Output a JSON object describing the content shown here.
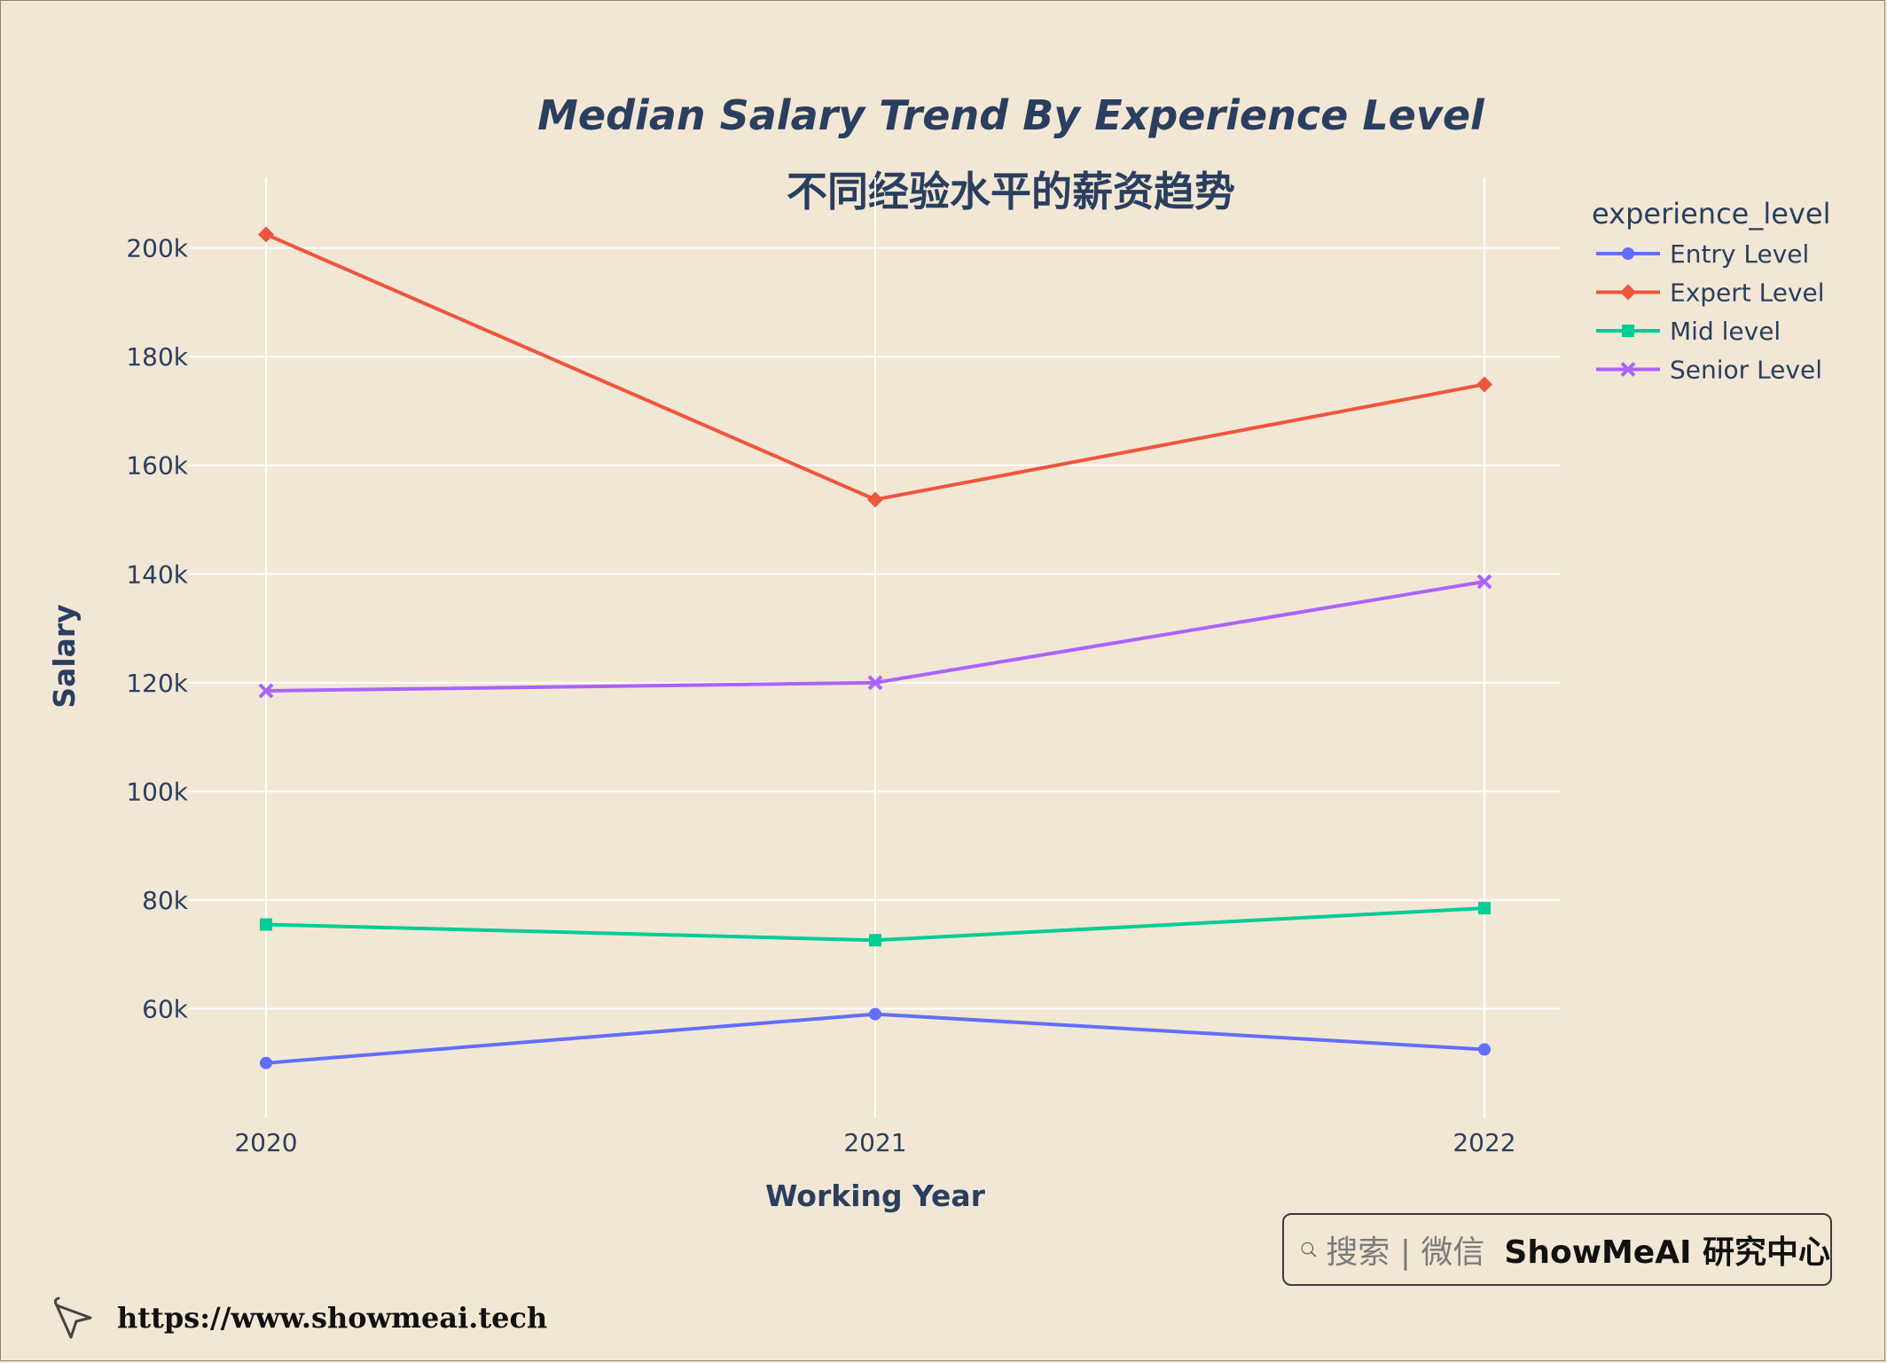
{
  "chart_data": {
    "type": "line",
    "title": "Median Salary Trend By Experience Level",
    "subtitle": "不同经验水平的薪资趋势",
    "xlabel": "Working Year",
    "ylabel": "Salary",
    "x": [
      "2020",
      "2021",
      "2022"
    ],
    "yticks": [
      60000,
      80000,
      100000,
      120000,
      140000,
      160000,
      180000,
      200000
    ],
    "ytick_labels": [
      "60k",
      "80k",
      "100k",
      "120k",
      "140k",
      "160k",
      "180k",
      "200k"
    ],
    "ylim": [
      40000,
      213000
    ],
    "grid": true,
    "legend_title": "experience_level",
    "legend_position": "top-right",
    "series": [
      {
        "name": "Entry Level",
        "values": [
          50000,
          59000,
          52500
        ],
        "color": "#636efa",
        "marker": "circle"
      },
      {
        "name": "Expert Level",
        "values": [
          202500,
          153700,
          174900
        ],
        "color": "#ef553b",
        "marker": "diamond"
      },
      {
        "name": "Mid level",
        "values": [
          75500,
          72600,
          78500
        ],
        "color": "#00cc96",
        "marker": "square"
      },
      {
        "name": "Senior Level",
        "values": [
          118500,
          120000,
          138600
        ],
        "color": "#ab63fa",
        "marker": "x"
      }
    ]
  },
  "search_box": {
    "hint": "搜索 | 微信",
    "brand": "ShowMeAI 研究中心"
  },
  "footer": {
    "url": "https://www.showmeai.tech"
  }
}
